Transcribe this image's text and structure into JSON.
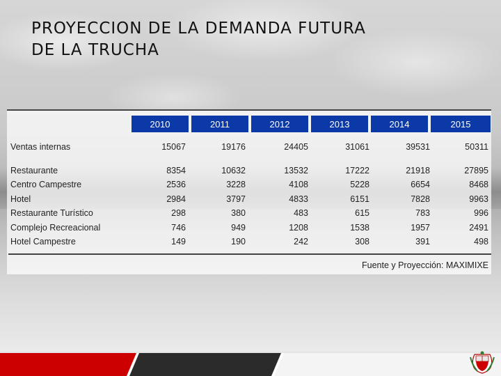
{
  "slide": {
    "title_line1": "PROYECCION DE LA DEMANDA FUTURA",
    "title_line2": "DE LA TRUCHA"
  },
  "table": {
    "years": [
      "2010",
      "2011",
      "2012",
      "2013",
      "2014",
      "2015"
    ],
    "rows": [
      {
        "label": "Ventas internas",
        "values": [
          "15067",
          "19176",
          "24405",
          "31061",
          "39531",
          "50311"
        ]
      },
      {
        "label": "Restaurante",
        "values": [
          "8354",
          "10632",
          "13532",
          "17222",
          "21918",
          "27895"
        ]
      },
      {
        "label": "Centro Campestre",
        "values": [
          "2536",
          "3228",
          "4108",
          "5228",
          "6654",
          "8468"
        ]
      },
      {
        "label": "Hotel",
        "values": [
          "2984",
          "3797",
          "4833",
          "6151",
          "7828",
          "9963"
        ]
      },
      {
        "label": "Restaurante Turístico",
        "values": [
          "298",
          "380",
          "483",
          "615",
          "783",
          "996"
        ]
      },
      {
        "label": "Complejo Recreacional",
        "values": [
          "746",
          "949",
          "1208",
          "1538",
          "1957",
          "2491"
        ]
      },
      {
        "label": "Hotel Campestre",
        "values": [
          "149",
          "190",
          "242",
          "308",
          "391",
          "498"
        ]
      }
    ],
    "source": "Fuente y Proyección: MAXIMIXE"
  },
  "theme": {
    "header_blue": "#0b3aa8",
    "footer_red": "#cc0000",
    "footer_dark": "#2b2b2b"
  },
  "icons": {
    "emblem": "peru-coat-of-arms-icon"
  }
}
